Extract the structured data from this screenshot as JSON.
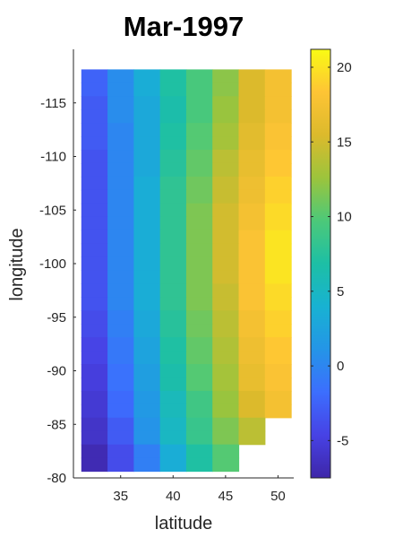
{
  "chart_data": {
    "type": "heatmap",
    "title": "Mar-1997",
    "xlabel": "latitude",
    "ylabel": "longitude",
    "colormap": "parula",
    "x_centers": [
      32.5,
      35,
      37.5,
      40,
      42.5,
      45,
      47.5,
      50
    ],
    "y_centers": [
      -117.5,
      -116.25,
      -115,
      -113.75,
      -112.5,
      -111.25,
      -110,
      -108.75,
      -107.5,
      -106.25,
      -105,
      -103.75,
      -102.5,
      -101.25,
      -100,
      -98.75,
      -97.5,
      -96.25,
      -95,
      -93.75,
      -92.5,
      -91.25,
      -90,
      -88.75,
      -87.5,
      -86.25,
      -85,
      -83.75,
      -82.5,
      -81.25
    ],
    "xlim": [
      30.5,
      51.5
    ],
    "ylim": [
      -120,
      -80
    ],
    "x_ticks": [
      35,
      40,
      45,
      50
    ],
    "y_ticks": [
      -115,
      -110,
      -105,
      -100,
      -95,
      -90,
      -85,
      -80
    ],
    "colorbar": {
      "range": [
        -7.5,
        21.2
      ],
      "ticks": [
        -5,
        0,
        5,
        10,
        15,
        20
      ]
    },
    "values": [
      [
        -2.5,
        0.5,
        3.5,
        7,
        9.5,
        12,
        15.5,
        17.5
      ],
      [
        -2.5,
        0.5,
        3.5,
        7,
        9.5,
        12,
        15.5,
        17.5
      ],
      [
        -3,
        0.5,
        3,
        6.5,
        9.5,
        12.5,
        15.5,
        17.5
      ],
      [
        -3,
        0.5,
        3,
        6.5,
        9.5,
        12.5,
        15.5,
        17.5
      ],
      [
        -3,
        0,
        3,
        7,
        10,
        13,
        16,
        18
      ],
      [
        -3,
        0,
        3,
        7,
        10,
        13,
        16,
        18
      ],
      [
        -3.5,
        0,
        3,
        7.5,
        10.5,
        14,
        16.5,
        18.5
      ],
      [
        -3.5,
        0,
        3,
        7.5,
        10.5,
        14,
        16.5,
        18.5
      ],
      [
        -3.5,
        0,
        3.5,
        8,
        11,
        14.5,
        17,
        19
      ],
      [
        -3.5,
        0,
        3.5,
        8,
        11,
        14.5,
        17,
        19
      ],
      [
        -3.5,
        0,
        3.5,
        8,
        11.5,
        15,
        17.5,
        19.5
      ],
      [
        -3.5,
        0,
        3.5,
        8,
        11.5,
        15,
        17.5,
        19.5
      ],
      [
        -3.5,
        0,
        3.5,
        8,
        11.5,
        15,
        18,
        20
      ],
      [
        -3.5,
        0,
        3.5,
        8,
        11.5,
        15,
        18,
        20
      ],
      [
        -3.5,
        0,
        3.5,
        8,
        11.5,
        15,
        18,
        20
      ],
      [
        -3.5,
        0,
        3.5,
        8,
        11.5,
        15,
        18,
        20
      ],
      [
        -3.5,
        0,
        3.5,
        8,
        11.5,
        14.5,
        18,
        19.5
      ],
      [
        -3.5,
        0,
        3.5,
        8,
        11.5,
        14.5,
        18,
        19.5
      ],
      [
        -4,
        -0.5,
        3,
        7.5,
        11,
        14,
        17.5,
        19
      ],
      [
        -4,
        -0.5,
        3,
        7.5,
        11,
        14,
        17.5,
        19
      ],
      [
        -4.5,
        -1,
        2.5,
        7,
        10.5,
        13.5,
        17,
        18.5
      ],
      [
        -4.5,
        -1,
        2.5,
        7,
        10.5,
        13.5,
        17,
        18.5
      ],
      [
        -5,
        -1.5,
        2,
        6.5,
        10,
        13,
        16.5,
        18
      ],
      [
        -5,
        -1.5,
        2,
        6.5,
        10,
        13,
        16.5,
        18
      ],
      [
        -5.5,
        -2,
        1.5,
        5.5,
        9,
        12.5,
        15.5,
        17.5
      ],
      [
        -5.5,
        -2,
        1.5,
        5.5,
        9,
        12.5,
        15.5,
        17.5
      ],
      [
        -6,
        -3,
        1,
        5,
        8.5,
        11.5,
        14,
        null
      ],
      [
        -6,
        -3,
        1,
        5,
        8.5,
        11.5,
        14,
        null
      ],
      [
        -7,
        -4,
        -0.5,
        3.5,
        7,
        10,
        null,
        null
      ],
      [
        -7,
        -4,
        -0.5,
        3.5,
        7,
        10,
        null,
        null
      ]
    ]
  }
}
